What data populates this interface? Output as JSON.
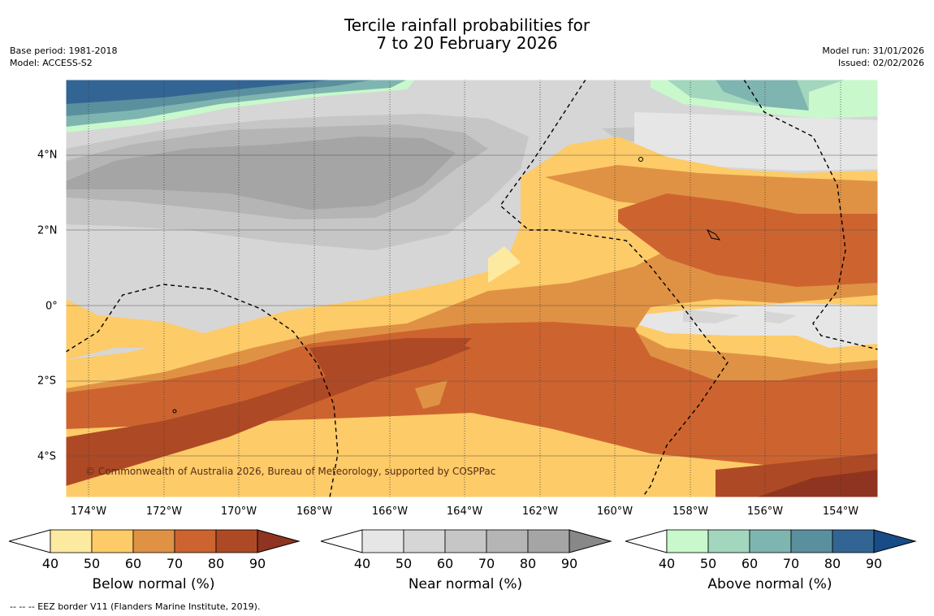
{
  "title": {
    "line1": "Tercile rainfall probabilities for",
    "line2": "7 to 20 February 2026"
  },
  "meta": {
    "base_period": "Base period: 1981-2018",
    "model": "Model: ACCESS-S2",
    "model_run": "Model run: 31/01/2026",
    "issued": "Issued: 02/02/2026"
  },
  "map": {
    "copyright": "© Commonwealth of Australia 2026, Bureau of Meteorology, supported by COSPPac",
    "lon_labels": [
      "174°W",
      "172°W",
      "170°W",
      "168°W",
      "166°W",
      "164°W",
      "162°W",
      "160°W",
      "158°W",
      "156°W",
      "154°W"
    ],
    "lat_labels": [
      "4°N",
      "2°N",
      "0°",
      "2°S",
      "4°S"
    ],
    "colors": {
      "below": [
        "#fdeaa1",
        "#fdcb68",
        "#e09244",
        "#cd642f",
        "#ae4925",
        "#8e3420"
      ],
      "near": [
        "#e6e6e6",
        "#d6d6d6",
        "#c6c6c6",
        "#b5b5b5",
        "#a5a5a5",
        "#888888"
      ],
      "above": [
        "#c8f8cc",
        "#a2d7bd",
        "#7fb5b0",
        "#5a909e",
        "#336594",
        "#184c86"
      ]
    }
  },
  "colorbars": [
    {
      "title": "Below normal (%)",
      "ticks": [
        "40",
        "50",
        "60",
        "70",
        "80",
        "90"
      ]
    },
    {
      "title": "Near normal (%)",
      "ticks": [
        "40",
        "50",
        "60",
        "70",
        "80",
        "90"
      ]
    },
    {
      "title": "Above normal (%)",
      "ticks": [
        "40",
        "50",
        "60",
        "70",
        "80",
        "90"
      ]
    }
  ],
  "footnote": "--  --  -- EEZ border V11 (Flanders Marine Institute, 2019)."
}
